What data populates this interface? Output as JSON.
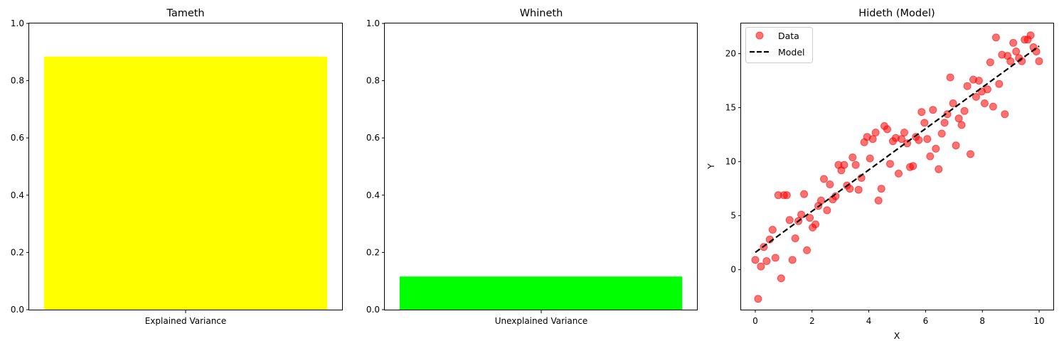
{
  "chart_data": [
    {
      "type": "bar",
      "title": "Tameth",
      "categories": [
        "Explained Variance"
      ],
      "values": [
        0.884
      ],
      "colors": [
        "#ffff00"
      ],
      "ylim": [
        0,
        1.0
      ],
      "yticks": [
        "0.0",
        "0.2",
        "0.4",
        "0.6",
        "0.8",
        "1.0"
      ],
      "xlabel": "",
      "ylabel": ""
    },
    {
      "type": "bar",
      "title": "Whineth",
      "categories": [
        "Unexplained Variance"
      ],
      "values": [
        0.116
      ],
      "colors": [
        "#00ff00"
      ],
      "ylim": [
        0,
        1.0
      ],
      "yticks": [
        "0.0",
        "0.2",
        "0.4",
        "0.6",
        "0.8",
        "1.0"
      ],
      "xlabel": "",
      "ylabel": ""
    },
    {
      "type": "scatter",
      "title": "Hideth (Model)",
      "xlabel": "X",
      "ylabel": "Y",
      "xlim": [
        -0.5,
        10.5
      ],
      "ylim": [
        -3.7,
        22.8
      ],
      "xticks": [
        "0",
        "2",
        "4",
        "6",
        "8",
        "10"
      ],
      "yticks": [
        "0",
        "5",
        "10",
        "15",
        "20"
      ],
      "legend_position": "top-left",
      "series": [
        {
          "name": "Data",
          "kind": "scatter",
          "color": "#ff0000",
          "points": [
            [
              0.0,
              0.9
            ],
            [
              0.1,
              -2.7
            ],
            [
              0.2,
              0.3
            ],
            [
              0.3,
              2.1
            ],
            [
              0.4,
              0.8
            ],
            [
              0.51,
              2.8
            ],
            [
              0.61,
              3.7
            ],
            [
              0.71,
              1.1
            ],
            [
              0.81,
              6.9
            ],
            [
              0.91,
              -0.8
            ],
            [
              1.01,
              6.9
            ],
            [
              1.11,
              6.9
            ],
            [
              1.21,
              4.6
            ],
            [
              1.31,
              0.9
            ],
            [
              1.41,
              2.9
            ],
            [
              1.52,
              4.5
            ],
            [
              1.62,
              5.1
            ],
            [
              1.72,
              7.0
            ],
            [
              1.82,
              1.8
            ],
            [
              1.92,
              4.8
            ],
            [
              2.02,
              3.9
            ],
            [
              2.12,
              4.2
            ],
            [
              2.22,
              5.9
            ],
            [
              2.32,
              6.4
            ],
            [
              2.42,
              8.4
            ],
            [
              2.53,
              5.5
            ],
            [
              2.63,
              7.9
            ],
            [
              2.73,
              6.5
            ],
            [
              2.83,
              6.8
            ],
            [
              2.93,
              9.7
            ],
            [
              3.03,
              9.2
            ],
            [
              3.13,
              9.7
            ],
            [
              3.23,
              7.8
            ],
            [
              3.33,
              7.5
            ],
            [
              3.43,
              10.4
            ],
            [
              3.54,
              9.7
            ],
            [
              3.64,
              7.4
            ],
            [
              3.74,
              8.5
            ],
            [
              3.84,
              11.8
            ],
            [
              3.94,
              12.3
            ],
            [
              4.04,
              10.3
            ],
            [
              4.14,
              12.1
            ],
            [
              4.24,
              12.7
            ],
            [
              4.34,
              6.4
            ],
            [
              4.44,
              7.5
            ],
            [
              4.55,
              13.3
            ],
            [
              4.65,
              13.0
            ],
            [
              4.75,
              9.8
            ],
            [
              4.85,
              11.9
            ],
            [
              4.95,
              12.2
            ],
            [
              5.05,
              8.9
            ],
            [
              5.15,
              12.1
            ],
            [
              5.25,
              12.7
            ],
            [
              5.35,
              11.7
            ],
            [
              5.45,
              9.5
            ],
            [
              5.56,
              9.6
            ],
            [
              5.66,
              12.3
            ],
            [
              5.76,
              12.0
            ],
            [
              5.86,
              14.6
            ],
            [
              5.96,
              13.6
            ],
            [
              6.06,
              12.1
            ],
            [
              6.16,
              10.5
            ],
            [
              6.26,
              14.8
            ],
            [
              6.36,
              11.2
            ],
            [
              6.46,
              9.3
            ],
            [
              6.57,
              12.6
            ],
            [
              6.67,
              13.6
            ],
            [
              6.77,
              14.4
            ],
            [
              6.87,
              17.8
            ],
            [
              6.97,
              15.4
            ],
            [
              7.07,
              11.5
            ],
            [
              7.17,
              14.0
            ],
            [
              7.27,
              13.4
            ],
            [
              7.37,
              14.7
            ],
            [
              7.47,
              17.0
            ],
            [
              7.58,
              10.7
            ],
            [
              7.68,
              17.6
            ],
            [
              7.78,
              16.0
            ],
            [
              7.88,
              17.5
            ],
            [
              7.98,
              16.5
            ],
            [
              8.08,
              15.4
            ],
            [
              8.18,
              16.7
            ],
            [
              8.28,
              19.2
            ],
            [
              8.38,
              15.1
            ],
            [
              8.48,
              21.5
            ],
            [
              8.59,
              17.2
            ],
            [
              8.69,
              19.9
            ],
            [
              8.79,
              14.4
            ],
            [
              8.89,
              19.8
            ],
            [
              8.99,
              19.3
            ],
            [
              9.09,
              21.0
            ],
            [
              9.19,
              20.2
            ],
            [
              9.29,
              19.6
            ],
            [
              9.39,
              19.3
            ],
            [
              9.49,
              21.3
            ],
            [
              9.6,
              21.3
            ],
            [
              9.7,
              21.7
            ],
            [
              9.8,
              20.6
            ],
            [
              9.9,
              20.2
            ],
            [
              10.0,
              19.3
            ]
          ]
        },
        {
          "name": "Model",
          "kind": "line",
          "color": "#000000",
          "dash": "dashed",
          "x": [
            0,
            10
          ],
          "y": [
            1.6,
            20.7
          ]
        }
      ]
    }
  ]
}
